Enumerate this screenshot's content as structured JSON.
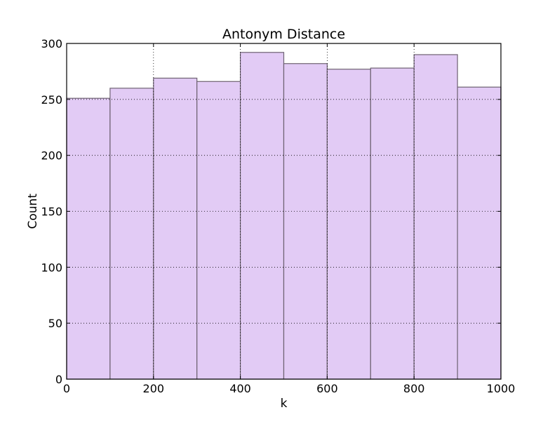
{
  "chart_data": {
    "type": "bar",
    "title": "Antonym Distance",
    "xlabel": "k",
    "ylabel": "Count",
    "xlim": [
      0,
      1000
    ],
    "ylim": [
      0,
      300
    ],
    "xticks": [
      0,
      200,
      400,
      600,
      800,
      1000
    ],
    "yticks": [
      0,
      50,
      100,
      150,
      200,
      250,
      300
    ],
    "grid": true,
    "bin_edges": [
      0,
      100,
      200,
      300,
      400,
      500,
      600,
      700,
      800,
      900,
      1000
    ],
    "values": [
      251,
      260,
      269,
      266,
      292,
      282,
      277,
      278,
      290,
      261
    ],
    "bar_color": "#e2cbf5",
    "edge_color": "#6e6272"
  }
}
